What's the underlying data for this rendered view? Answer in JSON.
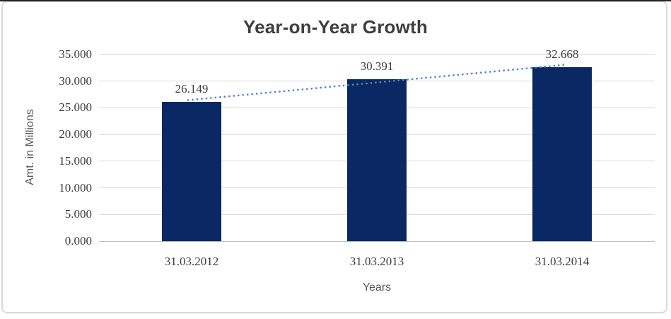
{
  "window": {
    "background": "#ffffff",
    "frame_border_color": "#d9d9d9",
    "top_edge_color": "#262626"
  },
  "chart_data": {
    "type": "bar",
    "title": "Year-on-Year Growth",
    "categories": [
      "31.03.2012",
      "31.03.2013",
      "31.03.2014"
    ],
    "values": [
      26.149,
      30.391,
      32.668
    ],
    "data_labels": [
      "26.149",
      "30.391",
      "32.668"
    ],
    "xlabel": "Years",
    "ylabel": "Amt. in Millions",
    "ylim": [
      0,
      35
    ],
    "ytick_step": 5,
    "ytick_labels": [
      "0.000",
      "5.000",
      "10.000",
      "15.000",
      "20.000",
      "25.000",
      "30.000",
      "35.000"
    ],
    "grid": true,
    "legend": "none",
    "bar_color": "#0a2864",
    "gridline_color": "#d9d9d9",
    "baseline_color": "#bfbfbf",
    "label_color": "#3d3d3d",
    "axis_title_color": "#595959",
    "title_color": "#3f3f3f",
    "trendline": {
      "type": "linear",
      "style": "dotted",
      "color": "#4e86c8"
    }
  }
}
